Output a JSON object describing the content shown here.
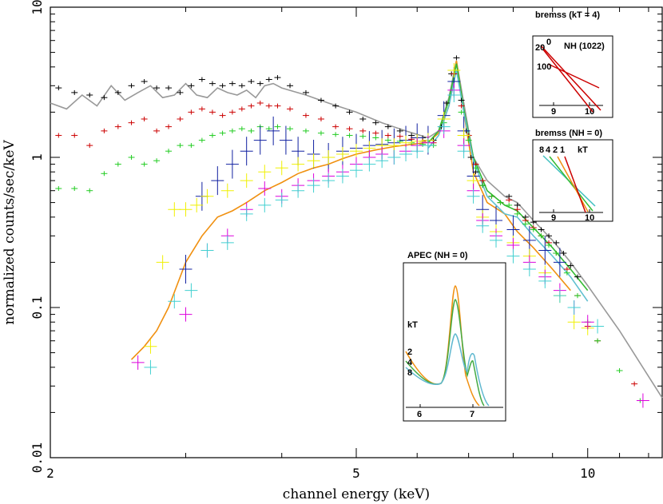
{
  "chart_data": {
    "type": "scatter",
    "xlabel": "channel energy (keV)",
    "ylabel": "normalized counts/sec/keV",
    "xscale": "log",
    "yscale": "log",
    "xlim": [
      2,
      12.5
    ],
    "ylim": [
      0.01,
      10
    ],
    "x_ticks": [
      {
        "value": 2,
        "label": "2"
      },
      {
        "value": 5,
        "label": "5"
      },
      {
        "value": 10,
        "label": "10"
      }
    ],
    "y_ticks": [
      {
        "value": 0.01,
        "label": "0.01"
      },
      {
        "value": 0.1,
        "label": "0.1"
      },
      {
        "value": 1,
        "label": "1"
      },
      {
        "value": 10,
        "label": "10"
      }
    ],
    "series": [
      {
        "name": "black",
        "color": "#000000",
        "kind": "points",
        "x": [
          2.05,
          2.15,
          2.25,
          2.35,
          2.45,
          2.55,
          2.65,
          2.75,
          2.85,
          2.95,
          3.05,
          3.15,
          3.25,
          3.35,
          3.45,
          3.55,
          3.65,
          3.75,
          3.85,
          3.95,
          4.1,
          4.3,
          4.5,
          4.7,
          4.9,
          5.1,
          5.3,
          5.5,
          5.7,
          5.9,
          6.1,
          6.3,
          6.45,
          6.55,
          6.65,
          6.75,
          6.85,
          6.95,
          7.05,
          7.15,
          7.3,
          7.5,
          7.7,
          7.9,
          8.1,
          8.3,
          8.5,
          8.7,
          8.9,
          9.1,
          9.3,
          9.5,
          9.7
        ],
        "y": [
          2.9,
          2.7,
          2.6,
          2.5,
          2.7,
          3.0,
          3.2,
          2.9,
          2.9,
          2.7,
          3.0,
          3.3,
          3.1,
          3.0,
          3.1,
          3.0,
          3.2,
          3.1,
          3.3,
          3.4,
          3.0,
          2.7,
          2.4,
          2.2,
          2.0,
          1.8,
          1.7,
          1.6,
          1.5,
          1.4,
          1.35,
          1.3,
          1.6,
          2.3,
          3.6,
          4.6,
          2.4,
          1.5,
          1.0,
          0.8,
          0.65,
          0.55,
          0.5,
          0.55,
          0.48,
          0.4,
          0.37,
          0.33,
          0.3,
          0.27,
          0.23,
          0.19,
          0.16
        ]
      },
      {
        "name": "red",
        "color": "#cc0000",
        "kind": "points",
        "x": [
          2.05,
          2.15,
          2.25,
          2.35,
          2.45,
          2.55,
          2.65,
          2.75,
          2.85,
          2.95,
          3.05,
          3.15,
          3.25,
          3.35,
          3.45,
          3.55,
          3.65,
          3.75,
          3.85,
          3.95,
          4.1,
          4.3,
          4.5,
          4.7,
          4.9,
          5.1,
          5.3,
          5.5,
          5.7,
          5.9,
          6.1,
          6.3,
          6.5,
          6.7,
          6.85,
          7.0,
          7.15,
          7.3,
          7.5,
          7.7,
          7.9,
          8.1,
          8.3,
          8.5,
          8.7,
          8.9,
          9.1,
          9.4,
          9.7,
          10.0,
          10.3,
          11.5
        ],
        "y": [
          1.4,
          1.4,
          1.2,
          1.5,
          1.6,
          1.7,
          1.8,
          1.5,
          1.6,
          1.8,
          2.0,
          2.1,
          2.0,
          1.9,
          2.0,
          2.1,
          2.2,
          2.3,
          2.2,
          2.2,
          2.1,
          1.9,
          1.8,
          1.6,
          1.55,
          1.5,
          1.45,
          1.4,
          1.38,
          1.32,
          1.28,
          1.25,
          1.8,
          3.6,
          2.2,
          1.4,
          0.9,
          0.7,
          0.55,
          0.5,
          0.52,
          0.45,
          0.38,
          0.34,
          0.3,
          0.27,
          0.23,
          0.18,
          0.12,
          0.075,
          0.06,
          0.031
        ]
      },
      {
        "name": "green",
        "color": "#22cc22",
        "kind": "points",
        "x": [
          2.05,
          2.15,
          2.25,
          2.35,
          2.45,
          2.55,
          2.65,
          2.75,
          2.85,
          2.95,
          3.05,
          3.15,
          3.25,
          3.35,
          3.45,
          3.55,
          3.65,
          3.75,
          3.85,
          3.95,
          4.1,
          4.3,
          4.5,
          4.7,
          4.9,
          5.1,
          5.3,
          5.5,
          5.7,
          5.9,
          6.1,
          6.3,
          6.5,
          6.7,
          6.85,
          7.0,
          7.15,
          7.3,
          7.5,
          7.7,
          7.9,
          8.1,
          8.3,
          8.5,
          8.7,
          8.9,
          9.1,
          9.4,
          9.7,
          10.0,
          10.3,
          11.0,
          11.7
        ],
        "y": [
          0.62,
          0.62,
          0.6,
          0.78,
          0.9,
          1.0,
          0.9,
          0.95,
          1.1,
          1.2,
          1.2,
          1.3,
          1.4,
          1.45,
          1.5,
          1.55,
          1.5,
          1.6,
          1.55,
          1.6,
          1.55,
          1.5,
          1.45,
          1.42,
          1.4,
          1.38,
          1.35,
          1.3,
          1.28,
          1.25,
          1.22,
          1.2,
          1.7,
          3.2,
          2.0,
          1.3,
          0.85,
          0.65,
          0.55,
          0.5,
          0.48,
          0.42,
          0.36,
          0.33,
          0.3,
          0.26,
          0.23,
          0.17,
          0.12,
          0.08,
          0.06,
          0.038,
          0.024
        ]
      },
      {
        "name": "blue",
        "color": "#1020a0",
        "kind": "points",
        "x": [
          3.0,
          3.15,
          3.3,
          3.45,
          3.6,
          3.75,
          3.9,
          4.05,
          4.2,
          4.4,
          4.6,
          4.8,
          5.0,
          5.2,
          5.4,
          5.6,
          5.8,
          6.0,
          6.2,
          6.5,
          6.7,
          6.9,
          7.1,
          7.3,
          7.6,
          8.0,
          8.4,
          8.8,
          9.2
        ],
        "y": [
          0.18,
          0.55,
          0.7,
          0.9,
          1.1,
          1.3,
          1.5,
          1.3,
          1.1,
          1.05,
          1.0,
          1.1,
          1.15,
          1.2,
          1.22,
          1.25,
          1.3,
          1.35,
          1.3,
          1.9,
          3.2,
          1.5,
          0.75,
          0.45,
          0.38,
          0.33,
          0.28,
          0.24,
          0.2
        ]
      },
      {
        "name": "yellow",
        "color": "#f0f000",
        "kind": "points",
        "x": [
          2.7,
          2.8,
          2.9,
          3.0,
          3.1,
          3.2,
          3.4,
          3.6,
          3.8,
          4.0,
          4.2,
          4.4,
          4.6,
          4.8,
          5.0,
          5.2,
          5.4,
          5.6,
          5.8,
          6.0,
          6.2,
          6.5,
          6.7,
          6.9,
          7.1,
          7.3,
          7.6,
          8.0,
          8.4,
          8.8,
          9.2,
          9.6,
          10.0
        ],
        "y": [
          0.055,
          0.2,
          0.45,
          0.45,
          0.48,
          0.55,
          0.6,
          0.7,
          0.8,
          0.85,
          0.9,
          0.95,
          1.0,
          1.05,
          1.1,
          1.15,
          1.2,
          1.2,
          1.25,
          1.28,
          1.3,
          1.8,
          3.8,
          1.4,
          0.7,
          0.4,
          0.32,
          0.27,
          0.22,
          0.17,
          0.12,
          0.08,
          0.073
        ]
      },
      {
        "name": "magenta",
        "color": "#dd00dd",
        "kind": "points",
        "x": [
          2.6,
          3.0,
          3.2,
          3.4,
          3.6,
          3.8,
          4.0,
          4.2,
          4.4,
          4.6,
          4.8,
          5.0,
          5.2,
          5.4,
          5.6,
          5.8,
          6.0,
          6.2,
          6.5,
          6.7,
          6.9,
          7.1,
          7.3,
          7.6,
          8.0,
          8.4,
          8.8,
          9.2,
          9.6,
          10.0,
          11.8
        ],
        "y": [
          0.043,
          0.09,
          0.24,
          0.3,
          0.45,
          0.62,
          0.55,
          0.65,
          0.7,
          0.75,
          0.8,
          0.9,
          1.0,
          1.05,
          1.0,
          1.1,
          1.2,
          1.25,
          1.5,
          2.8,
          1.2,
          0.6,
          0.38,
          0.3,
          0.26,
          0.2,
          0.16,
          0.13,
          0.1,
          0.08,
          0.024
        ]
      },
      {
        "name": "cyan",
        "color": "#40d0d0",
        "kind": "points",
        "x": [
          2.7,
          2.9,
          3.05,
          3.2,
          3.4,
          3.6,
          3.8,
          4.0,
          4.2,
          4.4,
          4.6,
          4.8,
          5.0,
          5.2,
          5.4,
          5.6,
          5.8,
          6.0,
          6.2,
          6.5,
          6.7,
          6.9,
          7.1,
          7.3,
          7.6,
          8.0,
          8.4,
          8.8,
          9.2,
          9.6,
          10.3
        ],
        "y": [
          0.04,
          0.11,
          0.13,
          0.24,
          0.27,
          0.42,
          0.48,
          0.52,
          0.6,
          0.65,
          0.7,
          0.75,
          0.82,
          0.9,
          0.95,
          1.0,
          1.05,
          1.1,
          1.2,
          1.6,
          2.6,
          1.1,
          0.55,
          0.35,
          0.28,
          0.22,
          0.18,
          0.15,
          0.12,
          0.1,
          0.075
        ]
      },
      {
        "name": "grey model",
        "color": "#999999",
        "kind": "line",
        "x": [
          2.0,
          2.1,
          2.2,
          2.3,
          2.4,
          2.5,
          2.6,
          2.7,
          2.8,
          2.9,
          3.0,
          3.1,
          3.2,
          3.3,
          3.4,
          3.5,
          3.6,
          3.7,
          3.8,
          3.9,
          4.0,
          4.3,
          4.6,
          5.0,
          5.4,
          5.8,
          6.2,
          6.4,
          6.6,
          6.75,
          6.9,
          7.1,
          7.4,
          7.8,
          8.1,
          8.5,
          9.0,
          9.5,
          10.0,
          11.0,
          12.5
        ],
        "y": [
          2.3,
          2.1,
          2.6,
          2.2,
          3.0,
          2.4,
          2.7,
          3.0,
          2.5,
          2.6,
          3.1,
          2.6,
          2.5,
          2.9,
          2.7,
          2.6,
          2.8,
          2.5,
          3.0,
          3.1,
          2.9,
          2.6,
          2.3,
          2.0,
          1.7,
          1.5,
          1.35,
          1.5,
          2.5,
          4.4,
          2.3,
          1.0,
          0.7,
          0.55,
          0.5,
          0.38,
          0.28,
          0.2,
          0.14,
          0.07,
          0.025
        ]
      },
      {
        "name": "orange model",
        "color": "#f09010",
        "kind": "line",
        "x": [
          2.55,
          2.65,
          2.75,
          2.85,
          3.0,
          3.15,
          3.3,
          3.45,
          3.6,
          3.8,
          4.0,
          4.2,
          4.4,
          4.6,
          4.8,
          5.0,
          5.3,
          5.6,
          5.9,
          6.2,
          6.4,
          6.6,
          6.75,
          6.9,
          7.1,
          7.4,
          7.8,
          8.1,
          8.5,
          9.0,
          9.5
        ],
        "y": [
          0.045,
          0.055,
          0.07,
          0.1,
          0.2,
          0.3,
          0.4,
          0.44,
          0.5,
          0.6,
          0.68,
          0.78,
          0.85,
          0.9,
          0.98,
          1.05,
          1.12,
          1.18,
          1.22,
          1.26,
          1.45,
          2.2,
          4.4,
          2.0,
          0.8,
          0.5,
          0.42,
          0.32,
          0.25,
          0.18,
          0.13
        ]
      },
      {
        "name": "green model",
        "color": "#33bb33",
        "kind": "line",
        "x": [
          6.2,
          6.4,
          6.6,
          6.75,
          6.9,
          7.1,
          7.4,
          7.8,
          8.1,
          8.5,
          9.0,
          9.5,
          10.0
        ],
        "y": [
          1.25,
          1.5,
          2.4,
          4.2,
          2.1,
          1.0,
          0.6,
          0.48,
          0.44,
          0.34,
          0.25,
          0.18,
          0.13
        ]
      },
      {
        "name": "cyan model",
        "color": "#60c0d0",
        "kind": "line",
        "x": [
          6.2,
          6.4,
          6.6,
          6.75,
          6.9,
          7.1,
          7.4,
          7.8,
          8.1,
          8.5,
          9.0,
          9.5,
          10.0
        ],
        "y": [
          1.15,
          1.4,
          2.2,
          3.8,
          2.0,
          0.95,
          0.55,
          0.42,
          0.4,
          0.3,
          0.22,
          0.16,
          0.11
        ]
      }
    ],
    "insets": [
      {
        "title": "bremss (kT = 4)",
        "label": "NH (1022)",
        "curve_labels": [
          "0",
          "20",
          "100"
        ],
        "x_ticks": [
          "9",
          "10"
        ]
      },
      {
        "title": "bremss (NH = 0)",
        "label": "kT",
        "curve_labels": [
          "8",
          "4",
          "2",
          "1"
        ],
        "x_ticks": [
          "9",
          "10"
        ]
      },
      {
        "title": "APEC (NH = 0)",
        "label": "kT",
        "curve_labels": [
          "2",
          "4",
          "8"
        ],
        "x_ticks": [
          "6",
          "7"
        ]
      }
    ]
  },
  "colors": {
    "axis": "#000000",
    "background": "#ffffff"
  }
}
